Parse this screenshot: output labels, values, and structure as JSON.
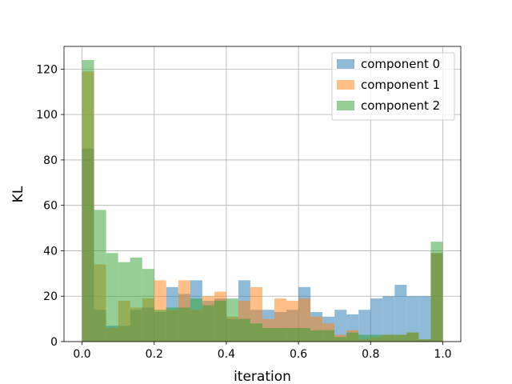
{
  "chart_data": {
    "type": "bar",
    "histogram": true,
    "xlabel": "iteration",
    "ylabel": "KL",
    "xlim": [
      -0.05,
      1.05
    ],
    "ylim": [
      0,
      130
    ],
    "xticks": [
      "0.0",
      "0.2",
      "0.4",
      "0.6",
      "0.8",
      "1.0"
    ],
    "yticks": [
      "0",
      "20",
      "40",
      "60",
      "80",
      "100",
      "120"
    ],
    "grid": true,
    "legend_position": "top-right",
    "bin_width": 0.0333,
    "bins": [
      0.0,
      0.0333,
      0.0667,
      0.1,
      0.1333,
      0.1667,
      0.2,
      0.2333,
      0.2667,
      0.3,
      0.3333,
      0.3667,
      0.4,
      0.4333,
      0.4667,
      0.5,
      0.5333,
      0.5667,
      0.6,
      0.6333,
      0.6667,
      0.7,
      0.7333,
      0.7667,
      0.8,
      0.8333,
      0.8667,
      0.9,
      0.9333,
      0.9667
    ],
    "series": [
      {
        "name": "component 0",
        "color": "#1f77b4",
        "values": [
          85,
          14,
          7,
          7,
          14,
          15,
          13,
          24,
          21,
          27,
          18,
          19,
          10,
          27,
          14,
          14,
          13,
          14,
          24,
          13,
          11,
          14,
          12,
          14,
          19,
          20,
          25,
          20,
          20,
          39
        ]
      },
      {
        "name": "component 1",
        "color": "#ff7f0e",
        "values": [
          119,
          34,
          6,
          18,
          15,
          19,
          27,
          14,
          27,
          14,
          20,
          22,
          11,
          18,
          24,
          10,
          19,
          18,
          19,
          11,
          8,
          3,
          5,
          1,
          2,
          3,
          3,
          4,
          1,
          39
        ]
      },
      {
        "name": "component 2",
        "color": "#2ca02c",
        "values": [
          124,
          58,
          39,
          35,
          37,
          32,
          14,
          15,
          15,
          19,
          16,
          18,
          19,
          10,
          8,
          6,
          6,
          6,
          6,
          5,
          5,
          2,
          4,
          3,
          3,
          3,
          3,
          4,
          1,
          44
        ]
      }
    ]
  }
}
